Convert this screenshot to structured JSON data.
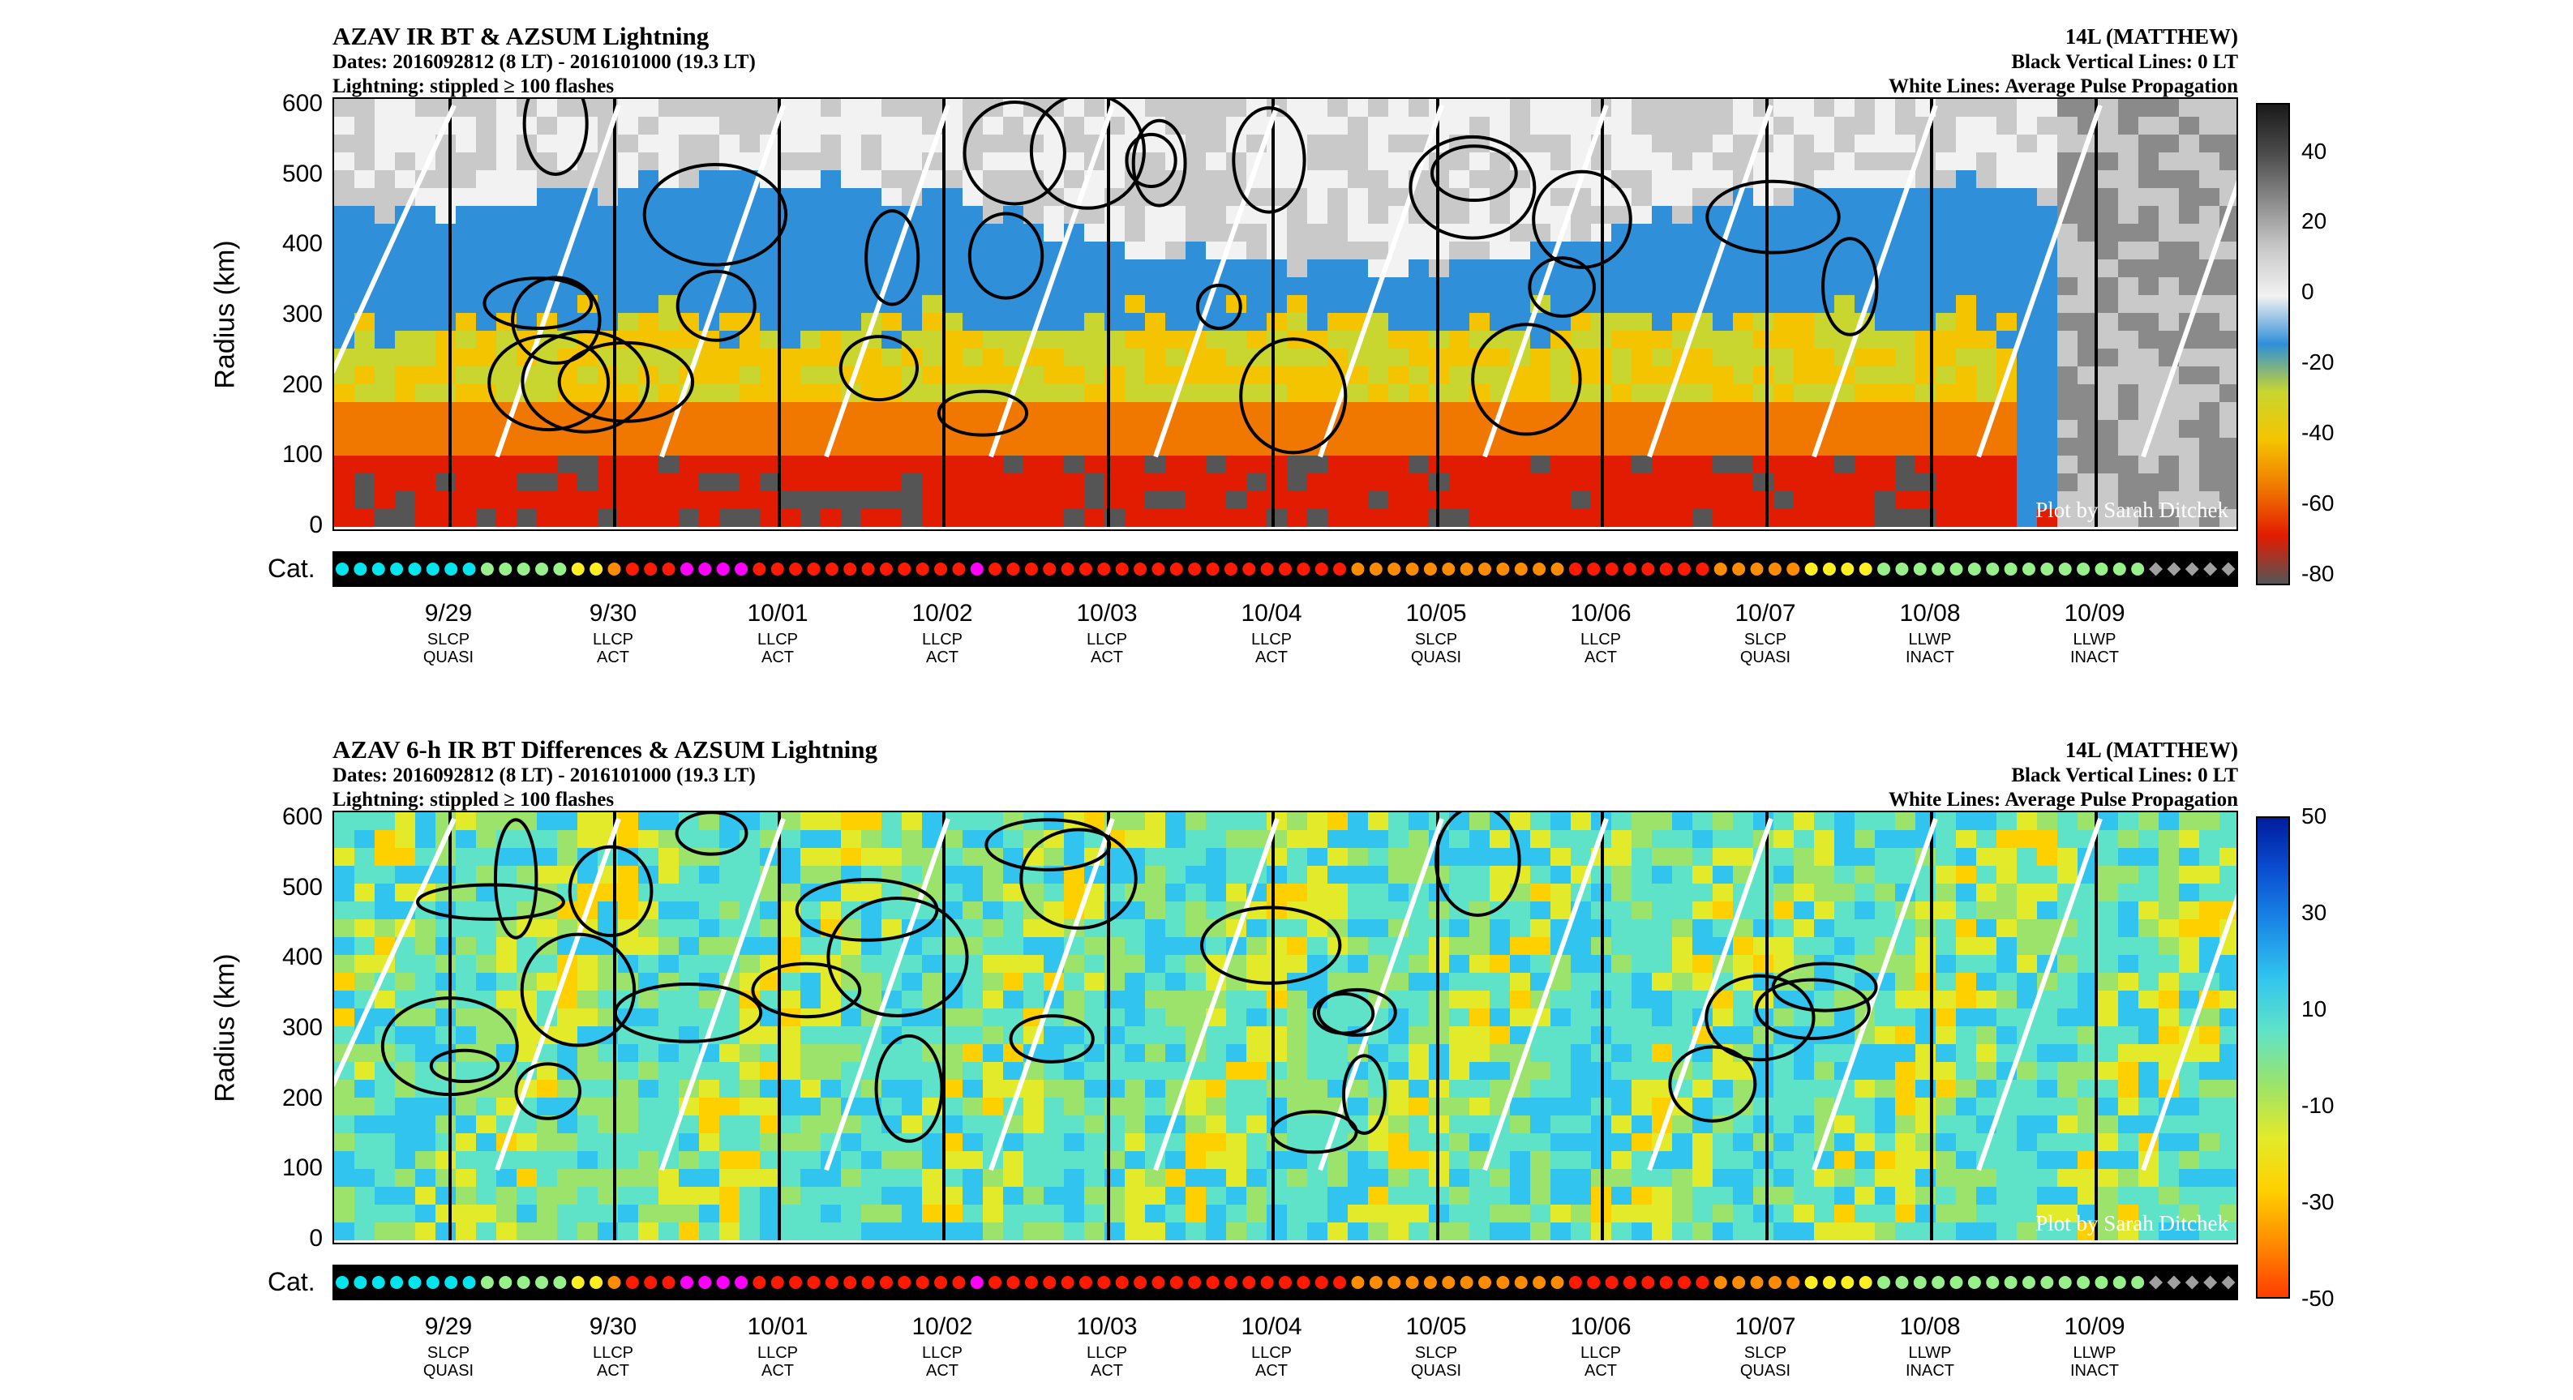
{
  "storm": "14L (MATTHEW)",
  "legend_lines": [
    "Black Vertical Lines: 0 LT",
    "White Lines: Average Pulse Propagation"
  ],
  "credit": "Plot by Sarah Ditchek",
  "cat_label": "Cat.",
  "panels": [
    {
      "title": "AZAV IR BT & AZSUM Lightning",
      "dates": "Dates: 2016092812 (8 LT) - 2016101000 (19.3 LT)",
      "lightning": "Lightning: stippled ≥ 100 flashes",
      "colorbar_ticks": [
        "40",
        "20",
        "0",
        "-20",
        "-40",
        "-60",
        "-80"
      ],
      "colorbar_colors": [
        "#1a1a1a",
        "#4a4a4a",
        "#8a8a8a",
        "#c9c9c9",
        "#f2f2f2",
        "#2f8fd8",
        "#c9d62f",
        "#f5c400",
        "#f07800",
        "#e21c00",
        "#555555"
      ]
    },
    {
      "title": "AZAV 6-h IR BT Differences & AZSUM Lightning",
      "dates": "Dates: 2016092812 (8 LT) - 2016101000 (19.3 LT)",
      "lightning": "Lightning: stippled ≥ 100 flashes",
      "colorbar_ticks": [
        "50",
        "30",
        "10",
        "-10",
        "-30",
        "-50"
      ],
      "colorbar_colors": [
        "#001c9e",
        "#0b4fd1",
        "#1a8ae6",
        "#31c4ee",
        "#5fe3c8",
        "#9be36a",
        "#e3ea2a",
        "#ffd000",
        "#ff8a00",
        "#ff3d00"
      ]
    }
  ],
  "chart_data": {
    "type": "heatmap",
    "ylabel": "Radius (km)",
    "ylim": [
      0,
      600
    ],
    "yticks": [
      0,
      100,
      200,
      300,
      400,
      500,
      600
    ],
    "xlabel": "",
    "time_range": [
      "2016092812",
      "2016101000"
    ],
    "dates": [
      "9/29",
      "9/30",
      "10/01",
      "10/02",
      "10/03",
      "10/04",
      "10/05",
      "10/06",
      "10/07",
      "10/08",
      "10/09"
    ],
    "phases": [
      [
        "SLCP",
        "QUASI"
      ],
      [
        "LLCP",
        "ACT"
      ],
      [
        "LLCP",
        "ACT"
      ],
      [
        "LLCP",
        "ACT"
      ],
      [
        "LLCP",
        "ACT"
      ],
      [
        "LLCP",
        "ACT"
      ],
      [
        "SLCP",
        "QUASI"
      ],
      [
        "LLCP",
        "ACT"
      ],
      [
        "SLCP",
        "QUASI"
      ],
      [
        "LLWP",
        "INACT"
      ],
      [
        "LLWP",
        "INACT"
      ]
    ],
    "category_colors": [
      "cyan",
      "cyan",
      "cyan",
      "cyan",
      "cyan",
      "cyan",
      "cyan",
      "cyan",
      "palegreen",
      "palegreen",
      "palegreen",
      "palegreen",
      "palegreen",
      "yellow",
      "yellow",
      "orange",
      "red",
      "red",
      "red",
      "magenta",
      "magenta",
      "magenta",
      "magenta",
      "red",
      "red",
      "red",
      "red",
      "red",
      "red",
      "red",
      "red",
      "red",
      "red",
      "red",
      "red",
      "magenta",
      "red",
      "red",
      "red",
      "red",
      "red",
      "red",
      "red",
      "red",
      "red",
      "red",
      "red",
      "red",
      "red",
      "red",
      "red",
      "red",
      "red",
      "red",
      "red",
      "red",
      "orange",
      "orange",
      "orange",
      "orange",
      "orange",
      "orange",
      "orange",
      "orange",
      "orange",
      "orange",
      "orange",
      "orange",
      "red",
      "red",
      "red",
      "red",
      "red",
      "red",
      "red",
      "red",
      "orange",
      "orange",
      "orange",
      "orange",
      "orange",
      "yellow",
      "yellow",
      "yellow",
      "yellow",
      "palegreen",
      "palegreen",
      "palegreen",
      "palegreen",
      "palegreen",
      "palegreen",
      "palegreen",
      "palegreen",
      "palegreen",
      "palegreen",
      "palegreen",
      "palegreen",
      "palegreen",
      "palegreen",
      "palegreen",
      "gray",
      "gray",
      "gray",
      "gray",
      "gray"
    ],
    "category_color_map": {
      "cyan": "#00e5ee",
      "palegreen": "#98f08a",
      "yellow": "#ffee22",
      "orange": "#ff8c00",
      "red": "#ff1a00",
      "magenta": "#ff00ff",
      "gray": "#a0a0a0"
    }
  }
}
